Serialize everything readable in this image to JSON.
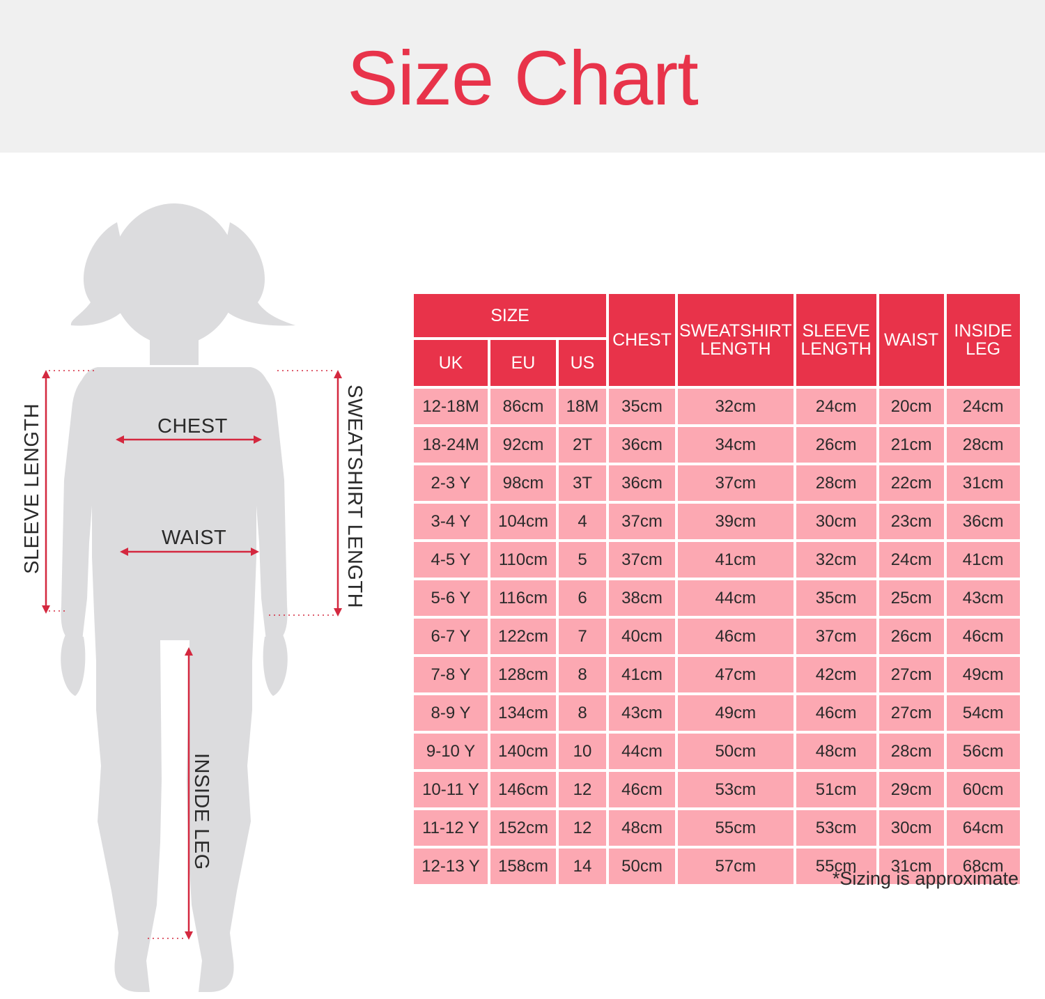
{
  "header": {
    "title": "Size Chart"
  },
  "diagram": {
    "labels": {
      "chest": "CHEST",
      "waist": "WAIST",
      "sleeve_length": "SLEEVE LENGTH",
      "sweatshirt_length": "SWEATSHIRT LENGTH",
      "inside_leg": "INSIDE LEG"
    },
    "colors": {
      "silhouette": "#dcdcde",
      "arrow": "#d4283f",
      "banner": "#f0f0f0"
    }
  },
  "table": {
    "group_header": "SIZE",
    "size_headers": [
      "UK",
      "EU",
      "US"
    ],
    "measure_headers": [
      {
        "line1": "CHEST",
        "line2": ""
      },
      {
        "line1": "SWEATSHIRT",
        "line2": "LENGTH"
      },
      {
        "line1": "SLEEVE",
        "line2": "LENGTH"
      },
      {
        "line1": "WAIST",
        "line2": ""
      },
      {
        "line1": "INSIDE",
        "line2": "LEG"
      }
    ],
    "rows": [
      [
        "12-18M",
        "86cm",
        "18M",
        "35cm",
        "32cm",
        "24cm",
        "20cm",
        "24cm"
      ],
      [
        "18-24M",
        "92cm",
        "2T",
        "36cm",
        "34cm",
        "26cm",
        "21cm",
        "28cm"
      ],
      [
        "2-3 Y",
        "98cm",
        "3T",
        "36cm",
        "37cm",
        "28cm",
        "22cm",
        "31cm"
      ],
      [
        "3-4 Y",
        "104cm",
        "4",
        "37cm",
        "39cm",
        "30cm",
        "23cm",
        "36cm"
      ],
      [
        "4-5 Y",
        "110cm",
        "5",
        "37cm",
        "41cm",
        "32cm",
        "24cm",
        "41cm"
      ],
      [
        "5-6 Y",
        "116cm",
        "6",
        "38cm",
        "44cm",
        "35cm",
        "25cm",
        "43cm"
      ],
      [
        "6-7 Y",
        "122cm",
        "7",
        "40cm",
        "46cm",
        "37cm",
        "26cm",
        "46cm"
      ],
      [
        "7-8 Y",
        "128cm",
        "8",
        "41cm",
        "47cm",
        "42cm",
        "27cm",
        "49cm"
      ],
      [
        "8-9 Y",
        "134cm",
        "8",
        "43cm",
        "49cm",
        "46cm",
        "27cm",
        "54cm"
      ],
      [
        "9-10 Y",
        "140cm",
        "10",
        "44cm",
        "50cm",
        "48cm",
        "28cm",
        "56cm"
      ],
      [
        "10-11 Y",
        "146cm",
        "12",
        "46cm",
        "53cm",
        "51cm",
        "29cm",
        "60cm"
      ],
      [
        "11-12 Y",
        "152cm",
        "12",
        "48cm",
        "55cm",
        "53cm",
        "30cm",
        "64cm"
      ],
      [
        "12-13 Y",
        "158cm",
        "14",
        "50cm",
        "57cm",
        "55cm",
        "31cm",
        "68cm"
      ]
    ],
    "colors": {
      "header": "#e8334a",
      "cell": "#fca8b2"
    }
  },
  "footnote": "*Sizing is approximate"
}
